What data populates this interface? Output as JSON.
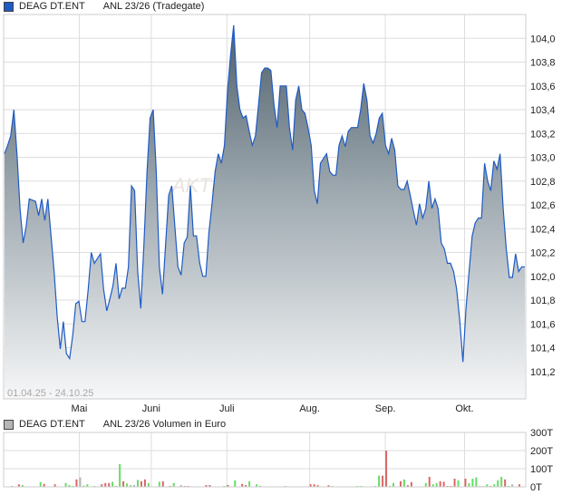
{
  "price_legend": {
    "series": "DEAG DT.ENT",
    "instrument": "ANL 23/26 (Tradegate)",
    "color": "#1f5bc4"
  },
  "volume_legend": {
    "series": "DEAG DT.ENT",
    "instrument": "ANL 23/26 Volumen in Euro",
    "color": "#b5b5b5"
  },
  "date_range": "01.04.25 - 24.10.25",
  "watermark": "AKTIENCHECK",
  "chart_data": [
    {
      "type": "area",
      "title": "",
      "x_range": [
        "01.04.25",
        "24.10.25"
      ],
      "x_ticks": [
        "Mai",
        "Juni",
        "Juli",
        "Aug.",
        "Sep.",
        "Okt."
      ],
      "y_ticks": [
        "101,2",
        "101,4",
        "101,6",
        "101,8",
        "102,0",
        "102,2",
        "102,4",
        "102,6",
        "102,8",
        "103,0",
        "103,2",
        "103,4",
        "103,6",
        "103,8",
        "104,0"
      ],
      "ylim": [
        100.97,
        104.2
      ],
      "grid": true,
      "line_color": "#1f5bc4",
      "values": [
        103.03,
        103.1,
        103.18,
        103.4,
        103.03,
        102.57,
        102.28,
        102.42,
        102.65,
        102.64,
        102.63,
        102.51,
        102.65,
        102.47,
        102.65,
        102.34,
        102.04,
        101.66,
        101.39,
        101.62,
        101.35,
        101.31,
        101.5,
        101.77,
        101.79,
        101.62,
        101.62,
        101.89,
        102.2,
        102.11,
        102.15,
        102.19,
        101.89,
        101.71,
        101.81,
        101.92,
        102.11,
        101.81,
        101.9,
        101.9,
        102.08,
        102.76,
        102.72,
        102.04,
        101.73,
        102.27,
        102.88,
        103.33,
        103.4,
        102.88,
        102.08,
        101.85,
        102.27,
        102.68,
        102.76,
        102.42,
        102.08,
        102.01,
        102.28,
        102.33,
        102.76,
        102.34,
        102.34,
        102.11,
        102.0,
        102.0,
        102.37,
        102.61,
        102.88,
        103.03,
        102.95,
        103.1,
        103.56,
        103.86,
        104.11,
        103.6,
        103.4,
        103.33,
        103.35,
        103.22,
        103.1,
        103.18,
        103.44,
        103.71,
        103.75,
        103.75,
        103.73,
        103.44,
        103.25,
        103.6,
        103.6,
        103.6,
        103.25,
        103.06,
        103.48,
        103.6,
        103.4,
        103.37,
        103.25,
        103.1,
        102.72,
        102.61,
        102.95,
        102.99,
        103.03,
        102.88,
        102.85,
        102.85,
        103.1,
        103.18,
        103.09,
        103.22,
        103.25,
        103.25,
        103.25,
        103.4,
        103.62,
        103.48,
        103.18,
        103.12,
        103.2,
        103.33,
        103.37,
        103.1,
        103.03,
        103.16,
        103.06,
        102.76,
        102.73,
        102.73,
        102.8,
        102.68,
        102.55,
        102.43,
        102.61,
        102.49,
        102.57,
        102.8,
        102.57,
        102.65,
        102.57,
        102.28,
        102.23,
        102.11,
        102.11,
        102.04,
        101.89,
        101.62,
        101.28,
        101.73,
        102.04,
        102.34,
        102.45,
        102.49,
        102.49,
        102.95,
        102.8,
        102.72,
        102.97,
        102.9,
        103.03,
        102.57,
        102.23,
        101.99,
        101.99,
        102.19,
        102.04,
        102.08,
        102.08
      ]
    },
    {
      "type": "bar",
      "title": "",
      "ylabel": "",
      "y_ticks": [
        "0T",
        "100T",
        "200T",
        "300T"
      ],
      "ylim": [
        0,
        300
      ],
      "unit": "T",
      "colors": {
        "up": "#66dd66",
        "down": "#dd6666",
        "flat": "#b5b5b5"
      },
      "trading_days": 146,
      "bars": [
        [
          0,
          1,
          "up"
        ],
        [
          1,
          2,
          "up"
        ],
        [
          2,
          5,
          "up"
        ],
        [
          4,
          14,
          "down"
        ],
        [
          5,
          10,
          "up"
        ],
        [
          10,
          26,
          "up"
        ],
        [
          11,
          16,
          "down"
        ],
        [
          14,
          14,
          "down"
        ],
        [
          15,
          2,
          "up"
        ],
        [
          17,
          21,
          "up"
        ],
        [
          18,
          10,
          "up"
        ],
        [
          19,
          5,
          "up"
        ],
        [
          20,
          41,
          "down"
        ],
        [
          21,
          52,
          "flat"
        ],
        [
          22,
          7,
          "up"
        ],
        [
          23,
          14,
          "up"
        ],
        [
          25,
          5,
          "up"
        ],
        [
          27,
          14,
          "down"
        ],
        [
          28,
          21,
          "down"
        ],
        [
          29,
          21,
          "down"
        ],
        [
          30,
          28,
          "up"
        ],
        [
          31,
          5,
          "up"
        ],
        [
          32,
          126,
          "up"
        ],
        [
          33,
          31,
          "down"
        ],
        [
          34,
          19,
          "up"
        ],
        [
          35,
          9,
          "up"
        ],
        [
          36,
          10,
          "flat"
        ],
        [
          37,
          38,
          "up"
        ],
        [
          38,
          31,
          "down"
        ],
        [
          39,
          41,
          "down"
        ],
        [
          40,
          21,
          "up"
        ],
        [
          43,
          28,
          "up"
        ],
        [
          44,
          31,
          "down"
        ],
        [
          46,
          5,
          "down"
        ],
        [
          47,
          21,
          "up"
        ],
        [
          49,
          10,
          "flat"
        ],
        [
          50,
          5,
          "down"
        ],
        [
          51,
          5,
          "down"
        ],
        [
          56,
          10,
          "down"
        ],
        [
          57,
          10,
          "down"
        ],
        [
          61,
          5,
          "up"
        ],
        [
          62,
          10,
          "down"
        ],
        [
          64,
          36,
          "up"
        ],
        [
          66,
          16,
          "down"
        ],
        [
          67,
          10,
          "down"
        ],
        [
          68,
          31,
          "up"
        ],
        [
          70,
          14,
          "up"
        ],
        [
          71,
          5,
          "up"
        ],
        [
          72,
          2,
          "up"
        ],
        [
          73,
          2,
          "up"
        ],
        [
          78,
          5,
          "up"
        ],
        [
          85,
          14,
          "down"
        ],
        [
          86,
          14,
          "down"
        ],
        [
          87,
          9,
          "down"
        ],
        [
          90,
          9,
          "down"
        ],
        [
          91,
          5,
          "up"
        ],
        [
          98,
          5,
          "up"
        ],
        [
          99,
          5,
          "up"
        ],
        [
          101,
          2,
          "down"
        ],
        [
          103,
          5,
          "flat"
        ],
        [
          104,
          62,
          "up"
        ],
        [
          105,
          62,
          "down"
        ],
        [
          106,
          200,
          "down"
        ],
        [
          107,
          5,
          "up"
        ],
        [
          108,
          21,
          "up"
        ],
        [
          110,
          31,
          "down"
        ],
        [
          111,
          41,
          "up"
        ],
        [
          112,
          9,
          "down"
        ],
        [
          113,
          26,
          "down"
        ],
        [
          117,
          21,
          "up"
        ],
        [
          118,
          55,
          "down"
        ],
        [
          119,
          14,
          "up"
        ],
        [
          120,
          21,
          "up"
        ],
        [
          121,
          31,
          "down"
        ],
        [
          122,
          28,
          "down"
        ],
        [
          123,
          5,
          "down"
        ],
        [
          124,
          5,
          "down"
        ],
        [
          125,
          45,
          "down"
        ],
        [
          126,
          36,
          "up"
        ],
        [
          128,
          45,
          "down"
        ],
        [
          129,
          21,
          "up"
        ],
        [
          130,
          45,
          "up"
        ],
        [
          131,
          52,
          "up"
        ],
        [
          132,
          5,
          "flat"
        ],
        [
          133,
          5,
          "flat"
        ],
        [
          134,
          14,
          "up"
        ],
        [
          135,
          5,
          "down"
        ],
        [
          136,
          14,
          "up"
        ],
        [
          137,
          36,
          "up"
        ],
        [
          138,
          55,
          "up"
        ],
        [
          139,
          41,
          "down"
        ],
        [
          140,
          5,
          "up"
        ],
        [
          141,
          14,
          "flat"
        ],
        [
          142,
          2,
          "up"
        ],
        [
          143,
          14,
          "down"
        ]
      ]
    }
  ]
}
